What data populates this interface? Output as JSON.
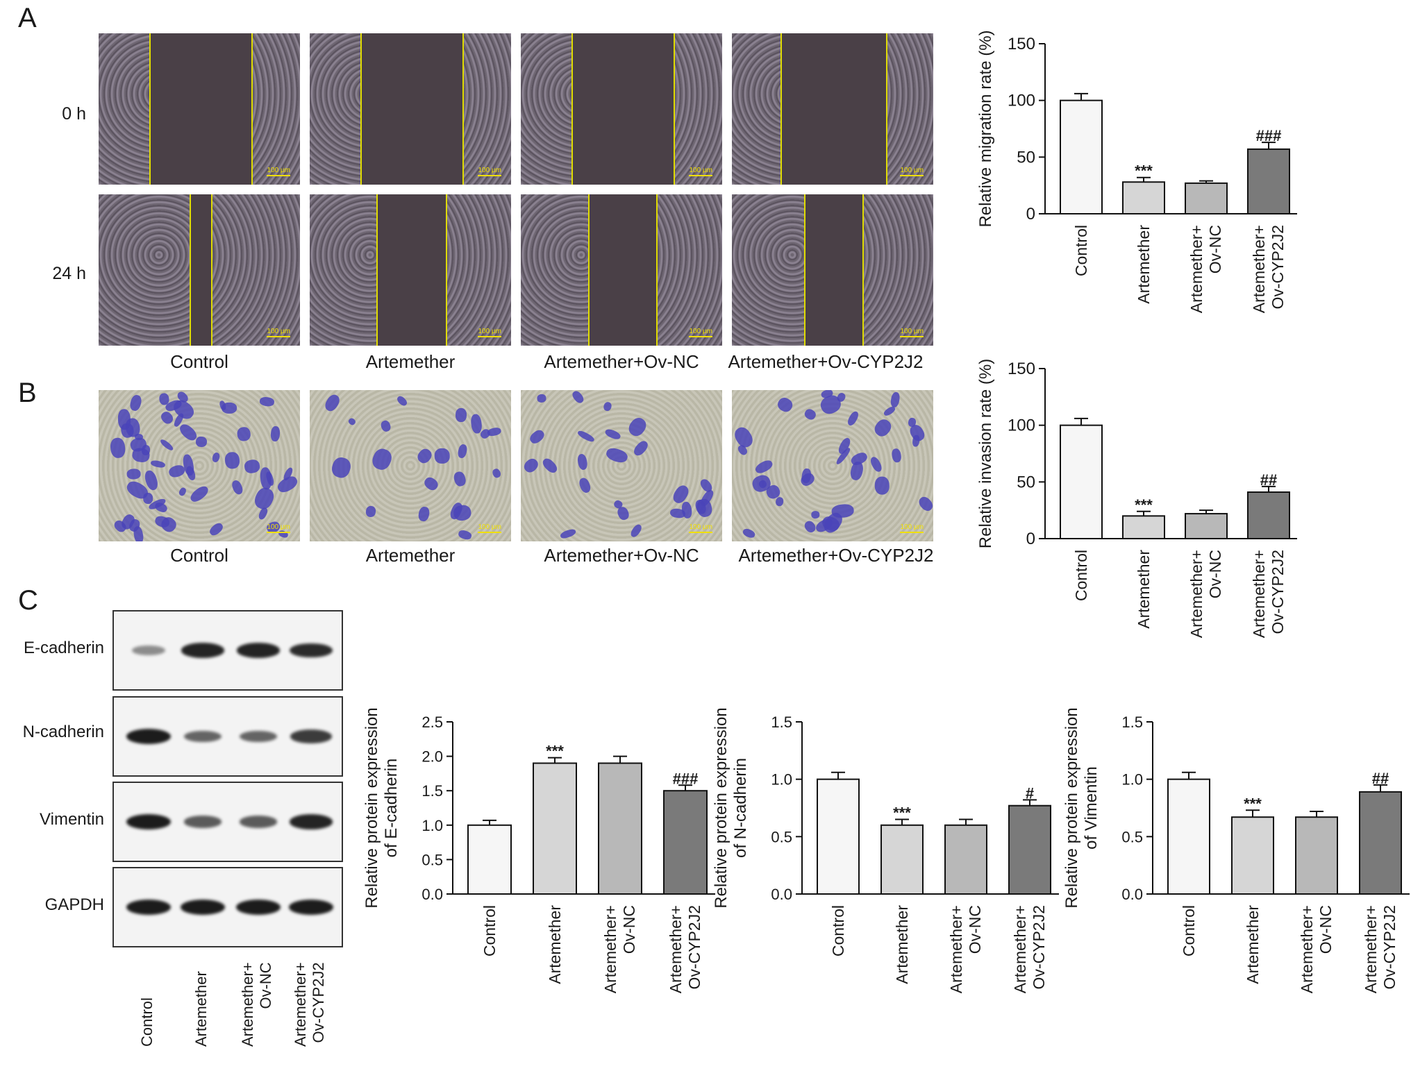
{
  "panels": {
    "A": "A",
    "B": "B",
    "C": "C"
  },
  "groups": [
    "Control",
    "Artemether",
    "Artemether+Ov-NC",
    "Artemether+Ov-CYP2J2"
  ],
  "panel_a": {
    "row_labels": [
      "0 h",
      "24 h"
    ],
    "image_labels": [
      "Control",
      "Artemether",
      "Artemether+Ov-NC",
      "Artemether+Ov-CYP2J2"
    ],
    "scale_bar_text": "100 μm",
    "wound_gap_0h": [
      0.5,
      0.5,
      0.5,
      0.52
    ],
    "wound_gap_24h": [
      0.1,
      0.34,
      0.33,
      0.28
    ]
  },
  "panel_b": {
    "image_labels": [
      "Control",
      "Artemether",
      "Artemether+Ov-NC",
      "Artemether+Ov-CYP2J2"
    ],
    "scale_bar_text": "100 μm"
  },
  "panel_c": {
    "protein_labels": [
      "E-cadherin",
      "N-cadherin",
      "Vimentin",
      "GAPDH"
    ],
    "lane_labels": [
      "Control",
      "Artemether",
      "Artemether+\nOv-NC",
      "Artemether+\nOv-CYP2J2"
    ],
    "band_intensity": [
      [
        0.3,
        0.95,
        0.95,
        0.9
      ],
      [
        1.0,
        0.55,
        0.55,
        0.8
      ],
      [
        1.0,
        0.6,
        0.6,
        0.95
      ],
      [
        1.0,
        1.0,
        1.0,
        1.0
      ]
    ]
  },
  "chart_data": [
    {
      "type": "bar",
      "categories": [
        "Control",
        "Artemether",
        "Artemether+\nOv-NC",
        "Artemether+\nOv-CYP2J2"
      ],
      "values": [
        100,
        28,
        27,
        57
      ],
      "errors": [
        6,
        4,
        2,
        6
      ],
      "annotations": [
        "",
        "***",
        "",
        "###"
      ],
      "ylabel": "Relative migration rate (%)",
      "ylim": [
        0,
        150
      ],
      "yticks": [
        0,
        50,
        100,
        150
      ],
      "fills": [
        "#f6f6f6",
        "#d6d6d6",
        "#b8b8b8",
        "#7a7a7a"
      ]
    },
    {
      "type": "bar",
      "categories": [
        "Control",
        "Artemether",
        "Artemether+\nOv-NC",
        "Artemether+\nOv-CYP2J2"
      ],
      "values": [
        100,
        20,
        22,
        41
      ],
      "errors": [
        6,
        4,
        3,
        5
      ],
      "annotations": [
        "",
        "***",
        "",
        "##"
      ],
      "ylabel": "Relative invasion rate (%)",
      "ylim": [
        0,
        150
      ],
      "yticks": [
        0,
        50,
        100,
        150
      ],
      "fills": [
        "#f6f6f6",
        "#d6d6d6",
        "#b8b8b8",
        "#7a7a7a"
      ]
    },
    {
      "type": "bar",
      "categories": [
        "Control",
        "Artemether",
        "Artemether+\nOv-NC",
        "Artemether+\nOv-CYP2J2"
      ],
      "values": [
        1.0,
        1.9,
        1.9,
        1.5
      ],
      "errors": [
        0.07,
        0.08,
        0.1,
        0.08
      ],
      "annotations": [
        "",
        "***",
        "",
        "###"
      ],
      "ylabel": "Relative protein expression\nof E-cadherin",
      "ylim": [
        0,
        2.5
      ],
      "yticks": [
        0.0,
        0.5,
        1.0,
        1.5,
        2.0,
        2.5
      ],
      "fills": [
        "#f6f6f6",
        "#d6d6d6",
        "#b8b8b8",
        "#7a7a7a"
      ]
    },
    {
      "type": "bar",
      "categories": [
        "Control",
        "Artemether",
        "Artemether+\nOv-NC",
        "Artemether+\nOv-CYP2J2"
      ],
      "values": [
        1.0,
        0.6,
        0.6,
        0.77
      ],
      "errors": [
        0.06,
        0.05,
        0.05,
        0.05
      ],
      "annotations": [
        "",
        "***",
        "",
        "#"
      ],
      "ylabel": "Relative protein expression\nof N-cadherin",
      "ylim": [
        0,
        1.5
      ],
      "yticks": [
        0.0,
        0.5,
        1.0,
        1.5
      ],
      "fills": [
        "#f6f6f6",
        "#d6d6d6",
        "#b8b8b8",
        "#7a7a7a"
      ]
    },
    {
      "type": "bar",
      "categories": [
        "Control",
        "Artemether",
        "Artemether+\nOv-NC",
        "Artemether+\nOv-CYP2J2"
      ],
      "values": [
        1.0,
        0.67,
        0.67,
        0.89
      ],
      "errors": [
        0.06,
        0.06,
        0.05,
        0.06
      ],
      "annotations": [
        "",
        "***",
        "",
        "##"
      ],
      "ylabel": "Relative protein expression\nof Vimentin",
      "ylim": [
        0,
        1.5
      ],
      "yticks": [
        0.0,
        0.5,
        1.0,
        1.5
      ],
      "fills": [
        "#f6f6f6",
        "#d6d6d6",
        "#b8b8b8",
        "#7a7a7a"
      ]
    }
  ]
}
